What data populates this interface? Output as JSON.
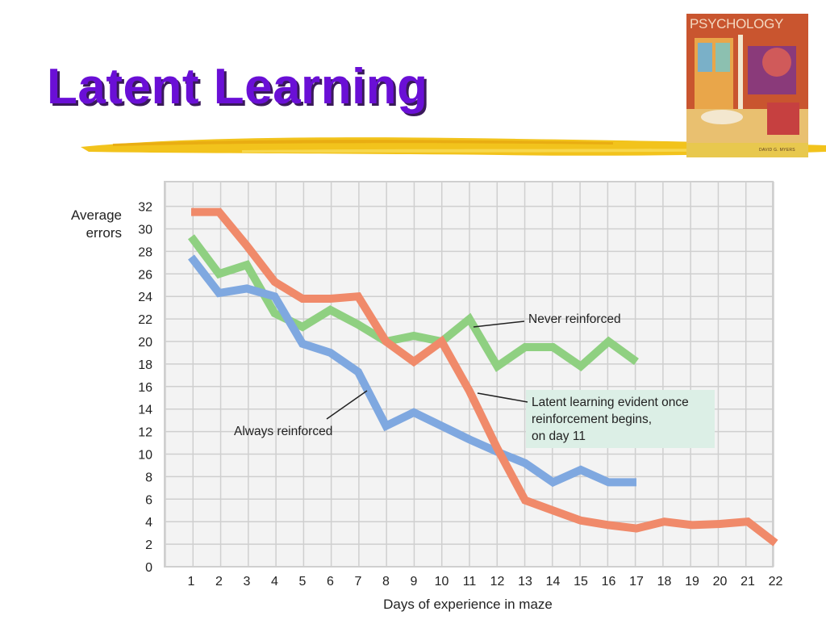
{
  "slide": {
    "title": "Latent Learning"
  },
  "book": {
    "title": "PSYCHOLOGY",
    "author": "DAVID G. MYERS"
  },
  "chart_data": {
    "type": "line",
    "xlabel": "Days of experience in maze",
    "ylabel_lines": [
      "Average",
      "errors"
    ],
    "xlim": [
      1,
      22
    ],
    "ylim": [
      0,
      32
    ],
    "xticks": [
      1,
      2,
      3,
      4,
      5,
      6,
      7,
      8,
      9,
      10,
      11,
      12,
      13,
      14,
      15,
      16,
      17,
      18,
      19,
      20,
      21,
      22
    ],
    "yticks": [
      0,
      2,
      4,
      6,
      8,
      10,
      12,
      14,
      16,
      18,
      20,
      22,
      24,
      26,
      28,
      30,
      32
    ],
    "grid": true,
    "series": [
      {
        "name": "Never reinforced",
        "color": "#8fd081",
        "x": [
          1,
          2,
          3,
          4,
          5,
          6,
          7,
          8,
          9,
          10,
          11,
          12,
          13,
          14,
          15,
          16,
          17
        ],
        "y": [
          29.3,
          26,
          26.8,
          22.5,
          21.3,
          22.8,
          21.5,
          20,
          20.5,
          20,
          22,
          17.8,
          19.5,
          19.5,
          17.8,
          20,
          18.2
        ]
      },
      {
        "name": "Always reinforced",
        "color": "#7fa8e0",
        "x": [
          1,
          2,
          3,
          4,
          5,
          6,
          7,
          8,
          9,
          10,
          11,
          12,
          13,
          14,
          15,
          16,
          17
        ],
        "y": [
          27.5,
          24.3,
          24.7,
          24,
          19.8,
          19,
          17.3,
          12.5,
          13.7,
          12.5,
          11.3,
          10.2,
          9.2,
          7.5,
          8.6,
          7.5,
          7.5
        ]
      },
      {
        "name": "Latent learning",
        "color": "#f08a6a",
        "x": [
          1,
          2,
          3,
          4,
          5,
          6,
          7,
          8,
          9,
          10,
          11,
          12,
          13,
          14,
          15,
          16,
          17,
          18,
          19,
          20,
          21,
          22
        ],
        "y": [
          31.5,
          31.5,
          28.5,
          25.3,
          23.8,
          23.8,
          24,
          20,
          18.2,
          20,
          15.6,
          10.5,
          5.9,
          5,
          4.1,
          3.7,
          3.4,
          4,
          3.7,
          3.8,
          4,
          2.1
        ]
      }
    ],
    "annotations": {
      "never": "Never reinforced",
      "always": "Always reinforced",
      "latent": [
        "Latent learning evident once",
        "reinforcement begins,",
        "on day 11"
      ]
    }
  }
}
